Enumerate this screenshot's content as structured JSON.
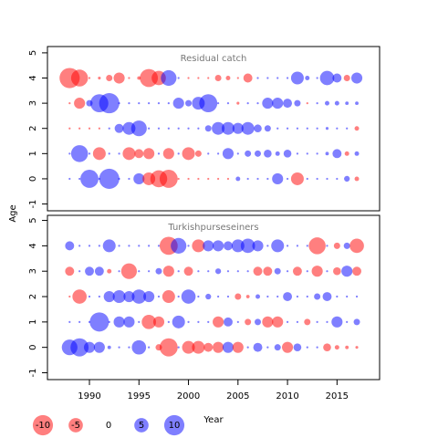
{
  "chart_data": [
    {
      "type": "bubble",
      "title": "Residual catch",
      "ylabel": "Age",
      "x": [
        1988,
        1989,
        1990,
        1991,
        1992,
        1993,
        1994,
        1995,
        1996,
        1997,
        1998,
        1999,
        2000,
        2001,
        2002,
        2003,
        2004,
        2005,
        2006,
        2007,
        2008,
        2009,
        2010,
        2011,
        2012,
        2013,
        2014,
        2015,
        2016,
        2017
      ],
      "ages": [
        0,
        1,
        2,
        3,
        4
      ],
      "values": [
        [
          0.1,
          0.1,
          8,
          0.1,
          10,
          0.1,
          0.1,
          3,
          -4,
          -7,
          -8,
          -0.1,
          -0.1,
          -0.1,
          -0.1,
          -0.1,
          -0.1,
          0.5,
          0.1,
          0.1,
          0.1,
          3,
          0.1,
          -4,
          0.1,
          0.1,
          0.1,
          0.1,
          0.8,
          -0.5
        ],
        [
          0.1,
          7,
          0.1,
          -4,
          0.1,
          0.1,
          -4,
          -2,
          -3,
          0.1,
          -3,
          0.1,
          -4,
          -1,
          0.1,
          0.1,
          3,
          0.1,
          1,
          1,
          1.5,
          0.5,
          1.5,
          0.1,
          0.1,
          0.1,
          0.3,
          2,
          -0.5,
          0.5
        ],
        [
          -0.1,
          -0.1,
          -0.1,
          -0.1,
          0.1,
          2,
          4,
          6,
          0.1,
          0.1,
          0.1,
          0.1,
          0.1,
          0.1,
          1,
          4,
          4,
          3,
          4,
          1.5,
          1,
          0.1,
          0.1,
          0.1,
          0.1,
          0.1,
          0.2,
          0.1,
          0.1,
          -0.5
        ],
        [
          -0.1,
          -3,
          1,
          8,
          10,
          0.1,
          0.1,
          0.1,
          0.1,
          0.1,
          0.1,
          3,
          1,
          4,
          8,
          0.1,
          0.1,
          -0.2,
          0.1,
          0.1,
          3,
          3,
          2,
          1,
          -0.1,
          0.1,
          0.5,
          0.5,
          0.3,
          0.3
        ],
        [
          -10,
          -7,
          -0.1,
          -0.2,
          -1,
          -3,
          -0.1,
          -0.3,
          -8,
          -5,
          6,
          0.1,
          -0.1,
          -0.1,
          -0.1,
          -1,
          -0.5,
          -0.1,
          -2,
          0.1,
          0.1,
          0.1,
          0.1,
          4,
          0.5,
          0.1,
          5,
          2,
          -1,
          3
        ]
      ],
      "xlim": [
        1985.76,
        2019.3
      ],
      "ylim": [
        -1.27,
        5.25
      ],
      "yticks": [
        -1,
        0,
        1,
        2,
        3,
        4,
        5
      ],
      "colors": {
        "positive": "rgba(0,0,255,0.5)",
        "negative": "rgba(255,0,0,0.5)"
      }
    },
    {
      "type": "bubble",
      "title": "Turkishpurseseiners",
      "xlabel": "Year",
      "x": [
        1988,
        1989,
        1990,
        1991,
        1992,
        1993,
        1994,
        1995,
        1996,
        1997,
        1998,
        1999,
        2000,
        2001,
        2002,
        2003,
        2004,
        2005,
        2006,
        2007,
        2008,
        2009,
        2010,
        2011,
        2012,
        2013,
        2014,
        2015,
        2016,
        2017
      ],
      "ages": [
        0,
        1,
        2,
        3,
        4
      ],
      "values": [
        [
          6,
          8,
          3,
          3,
          0.3,
          0.1,
          0.1,
          5,
          0.1,
          -1,
          -8,
          0.1,
          -4,
          -4,
          -2,
          -3,
          3,
          -3,
          0.1,
          2,
          0.1,
          1,
          -3,
          1.5,
          0.1,
          0.1,
          -1.5,
          -0.5,
          -0.3,
          -0.2
        ],
        [
          0.1,
          0.1,
          0.1,
          9,
          0.1,
          3,
          3,
          0.1,
          -5,
          -3,
          0.1,
          4,
          0.1,
          0.1,
          0.1,
          -3,
          2,
          0.1,
          -1,
          1,
          -3,
          -3,
          0.1,
          0.1,
          -1,
          0.1,
          0.1,
          3,
          0.1,
          1
        ],
        [
          -0.1,
          -5,
          0.1,
          0.1,
          3,
          4,
          3,
          5,
          3,
          0.1,
          -4,
          0.1,
          5,
          0.1,
          0.8,
          0.1,
          0.1,
          -1,
          -0.3,
          0.5,
          0.1,
          0.1,
          2,
          0.1,
          0.1,
          1,
          2,
          0.1,
          0.1,
          0.1
        ],
        [
          -2,
          0.1,
          2,
          2,
          -0.5,
          0.1,
          -6,
          0.1,
          0.1,
          1,
          -3,
          0.1,
          -2,
          0.1,
          0.1,
          0.8,
          0.1,
          0.1,
          0.1,
          -2,
          -2,
          1,
          0.1,
          -2,
          0.1,
          -3,
          0.1,
          -1.5,
          3,
          -2
        ],
        [
          2,
          0.1,
          0.1,
          0.1,
          4,
          0.1,
          0.1,
          0.1,
          0.1,
          0.1,
          -8,
          6,
          0.1,
          -4,
          3,
          3,
          2,
          4,
          5,
          3,
          0.1,
          4,
          0.1,
          0.1,
          0.1,
          -7,
          0.1,
          -1,
          1,
          -5
        ]
      ],
      "xlim": [
        1985.76,
        2019.3
      ],
      "ylim": [
        -1.27,
        5.2
      ],
      "yticks": [
        -1,
        0,
        1,
        2,
        3,
        4,
        5
      ],
      "xticks": [
        1990,
        1995,
        2000,
        2005,
        2010,
        2015
      ],
      "legend": [
        -10,
        -5,
        0,
        5,
        10
      ],
      "colors": {
        "positive": "rgba(0,0,255,0.5)",
        "negative": "rgba(255,0,0,0.5)"
      }
    }
  ]
}
